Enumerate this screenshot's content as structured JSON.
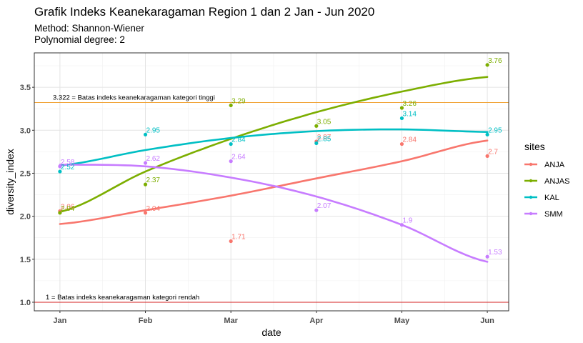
{
  "title": "Grafik Indeks Keanekaragaman Region 1 dan 2 Jan - Jun 2020",
  "subtitles": [
    "Method: Shannon-Wiener",
    "Polynomial degree: 2"
  ],
  "chart_data": {
    "type": "scatter",
    "title": "Grafik Indeks Keanekaragaman Region 1 dan 2 Jan - Jun 2020",
    "xlabel": "date",
    "ylabel": "diversity_index",
    "categories": [
      "Jan",
      "Feb",
      "Mar",
      "Apr",
      "May",
      "Jun"
    ],
    "xlim": [
      -0.3,
      5.25
    ],
    "ylim": [
      0.9,
      3.9
    ],
    "yticks": [
      1.0,
      1.5,
      2.0,
      2.5,
      3.0,
      3.5
    ],
    "ytick_labels": [
      "1.0",
      "1.5",
      "2.0",
      "2.5",
      "3.0",
      "3.5"
    ],
    "grid": true,
    "legend": {
      "title": "sites",
      "position": "right"
    },
    "reference_lines": [
      {
        "y": 3.322,
        "color": "#F0A030",
        "label": "3.322 = Batas indeks keanekaragaman kategori tinggi"
      },
      {
        "y": 1.0,
        "color": "#D62020",
        "label": "1 = Batas indeks keanekaragaman kategori rendah"
      }
    ],
    "series": [
      {
        "name": "ANJA",
        "color": "#F8766D",
        "values": [
          2.06,
          2.04,
          1.71,
          2.87,
          2.84,
          2.7
        ],
        "labels": [
          "2.06",
          "2.04",
          "1.71",
          "2.87",
          "2.84",
          "2.7"
        ],
        "fit": [
          1.91,
          2.07,
          2.24,
          2.44,
          2.64,
          2.88
        ]
      },
      {
        "name": "ANJAS",
        "color": "#7CAE00",
        "values": [
          2.04,
          2.37,
          3.29,
          3.05,
          3.26,
          3.76
        ],
        "labels": [
          "2.04",
          "2.37",
          "3.29",
          "3.05",
          "3.26",
          "3.76"
        ],
        "fit": [
          2.05,
          2.52,
          2.9,
          3.21,
          3.45,
          3.62
        ]
      },
      {
        "name": "KAL",
        "color": "#00BFC4",
        "values": [
          2.52,
          2.95,
          2.84,
          2.85,
          3.14,
          2.95
        ],
        "labels": [
          "2.52",
          "2.95",
          "2.84",
          "2.85",
          "3.14",
          "2.95"
        ],
        "fit": [
          2.59,
          2.77,
          2.91,
          2.99,
          3.01,
          2.98
        ]
      },
      {
        "name": "SMM",
        "color": "#C77CFF",
        "values": [
          2.58,
          2.62,
          2.64,
          2.07,
          1.9,
          1.53
        ],
        "labels": [
          "2.58",
          "2.62",
          "2.64",
          "2.07",
          "1.9",
          "1.53"
        ],
        "fit": [
          2.6,
          2.58,
          2.45,
          2.23,
          1.9,
          1.47
        ]
      }
    ]
  }
}
